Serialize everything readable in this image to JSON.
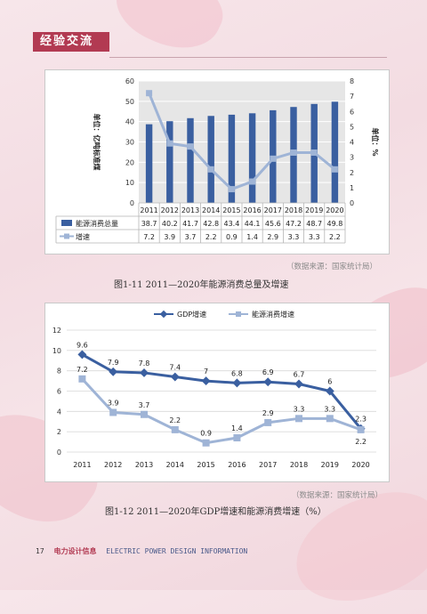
{
  "header": {
    "section_tag": "经验交流"
  },
  "chart1": {
    "caption": "图1-11 2011—2020年能源消费总量及增速",
    "source": "（数据来源：国家统计局）",
    "chart_data": {
      "type": "bar",
      "categories": [
        "2011",
        "2012",
        "2013",
        "2014",
        "2015",
        "2016",
        "2017",
        "2018",
        "2019",
        "2020"
      ],
      "series": [
        {
          "name": "能源消费总量",
          "kind": "bar",
          "axis": "left",
          "color": "#3a5fa0",
          "values": [
            38.7,
            40.2,
            41.7,
            42.8,
            43.4,
            44.1,
            45.6,
            47.2,
            48.7,
            49.8
          ]
        },
        {
          "name": "增速",
          "kind": "line",
          "axis": "right",
          "color": "#9fb4d6",
          "values": [
            7.2,
            3.9,
            3.7,
            2.2,
            0.9,
            1.4,
            2.9,
            3.3,
            3.3,
            2.2
          ]
        }
      ],
      "ylabel_left": "单位：亿吨标准煤",
      "ylabel_right": "单位：%",
      "ylim_left": [
        0,
        60
      ],
      "yticks_left": [
        0,
        10,
        20,
        30,
        40,
        50,
        60
      ],
      "ylim_right": [
        0,
        8
      ],
      "yticks_right": [
        0,
        1,
        2,
        3,
        4,
        5,
        6,
        7,
        8
      ],
      "legend": "data-table"
    }
  },
  "chart2": {
    "caption": "图1-12 2011—2020年GDP增速和能源消费增速（%）",
    "source": "（数据来源：国家统计局）",
    "chart_data": {
      "type": "line",
      "categories": [
        "2011",
        "2012",
        "2013",
        "2014",
        "2015",
        "2016",
        "2017",
        "2018",
        "2019",
        "2020"
      ],
      "series": [
        {
          "name": "GDP增速",
          "color": "#3a5fa0",
          "marker": "diamond",
          "values": [
            9.6,
            7.9,
            7.8,
            7.4,
            7,
            6.8,
            6.9,
            6.7,
            6,
            2.3
          ]
        },
        {
          "name": "能源消费增速",
          "color": "#9fb4d6",
          "marker": "square",
          "values": [
            7.2,
            3.9,
            3.7,
            2.2,
            0.9,
            1.4,
            2.9,
            3.3,
            3.3,
            2.2
          ]
        }
      ],
      "ylim": [
        0,
        12
      ],
      "yticks": [
        0,
        2,
        4,
        6,
        8,
        10,
        12
      ],
      "legend": "top-center",
      "grid": true
    }
  },
  "footer": {
    "page_number": "17",
    "brand": "电力设计信息",
    "title": "ELECTRIC POWER DESIGN INFORMATION"
  }
}
